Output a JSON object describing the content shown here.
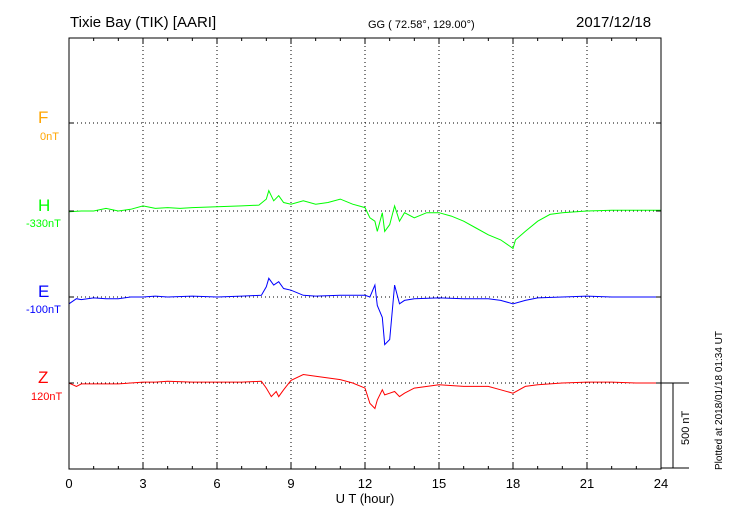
{
  "header": {
    "station": "Tixie Bay (TIK)  [AARI]",
    "coords": "GG ( 72.58°, 129.00°)",
    "date": "2017/12/18"
  },
  "plotted_note": "Plotted at 2018/01/18 01:34 UT",
  "scale_label": "500 nT",
  "chart_data": {
    "type": "line",
    "xlabel": "U T (hour)",
    "xlim": [
      0,
      24
    ],
    "xticks": [
      "0",
      "3",
      "6",
      "9",
      "12",
      "15",
      "18",
      "21",
      "24"
    ],
    "grid": true,
    "scale_bar_nT": 500,
    "series": [
      {
        "name": "F",
        "baseline": "0nT",
        "color": "#ffa500",
        "points": []
      },
      {
        "name": "H",
        "baseline": "-330nT",
        "color": "#00ff00",
        "points": [
          [
            0,
            -5
          ],
          [
            0.5,
            0
          ],
          [
            1,
            0
          ],
          [
            1.5,
            15
          ],
          [
            2,
            0
          ],
          [
            2.5,
            10
          ],
          [
            3,
            30
          ],
          [
            3.5,
            15
          ],
          [
            4,
            20
          ],
          [
            4.5,
            15
          ],
          [
            5,
            20
          ],
          [
            6,
            25
          ],
          [
            7,
            30
          ],
          [
            7.7,
            35
          ],
          [
            8,
            70
          ],
          [
            8.1,
            120
          ],
          [
            8.3,
            60
          ],
          [
            8.5,
            90
          ],
          [
            8.7,
            50
          ],
          [
            9,
            40
          ],
          [
            9.5,
            60
          ],
          [
            10,
            40
          ],
          [
            10.5,
            50
          ],
          [
            11,
            70
          ],
          [
            11.5,
            40
          ],
          [
            12,
            20
          ],
          [
            12.2,
            -40
          ],
          [
            12.4,
            -60
          ],
          [
            12.5,
            -120
          ],
          [
            12.7,
            -10
          ],
          [
            12.8,
            -120
          ],
          [
            13,
            -80
          ],
          [
            13.2,
            30
          ],
          [
            13.4,
            -60
          ],
          [
            13.6,
            -10
          ],
          [
            14,
            -40
          ],
          [
            14.5,
            -10
          ],
          [
            15,
            -10
          ],
          [
            15.5,
            -30
          ],
          [
            16,
            -60
          ],
          [
            16.5,
            -100
          ],
          [
            17,
            -140
          ],
          [
            17.5,
            -170
          ],
          [
            18,
            -220
          ],
          [
            18.1,
            -170
          ],
          [
            18.5,
            -120
          ],
          [
            19,
            -60
          ],
          [
            19.5,
            -20
          ],
          [
            20,
            -10
          ],
          [
            21,
            0
          ],
          [
            22,
            5
          ],
          [
            23,
            5
          ],
          [
            24,
            5
          ]
        ]
      },
      {
        "name": "E",
        "baseline": "-100nT",
        "color": "#0000ff",
        "points": [
          [
            0,
            -40
          ],
          [
            0.3,
            -10
          ],
          [
            0.5,
            -15
          ],
          [
            1,
            -5
          ],
          [
            1.5,
            -10
          ],
          [
            2,
            -10
          ],
          [
            2.5,
            0
          ],
          [
            3,
            0
          ],
          [
            3.5,
            5
          ],
          [
            4,
            0
          ],
          [
            5,
            5
          ],
          [
            6,
            0
          ],
          [
            7,
            5
          ],
          [
            7.8,
            10
          ],
          [
            8,
            60
          ],
          [
            8.1,
            110
          ],
          [
            8.3,
            70
          ],
          [
            8.5,
            90
          ],
          [
            8.7,
            50
          ],
          [
            9,
            40
          ],
          [
            9.5,
            10
          ],
          [
            10,
            5
          ],
          [
            11,
            10
          ],
          [
            11.5,
            10
          ],
          [
            12,
            10
          ],
          [
            12.2,
            0
          ],
          [
            12.4,
            70
          ],
          [
            12.5,
            -50
          ],
          [
            12.7,
            -120
          ],
          [
            12.8,
            -280
          ],
          [
            13,
            -250
          ],
          [
            13.2,
            70
          ],
          [
            13.4,
            -40
          ],
          [
            13.6,
            -20
          ],
          [
            14,
            -10
          ],
          [
            15,
            -5
          ],
          [
            16,
            -10
          ],
          [
            17,
            -10
          ],
          [
            17.5,
            -20
          ],
          [
            18,
            -40
          ],
          [
            18.5,
            -20
          ],
          [
            19,
            -5
          ],
          [
            20,
            0
          ],
          [
            21,
            5
          ],
          [
            22,
            0
          ],
          [
            23,
            0
          ],
          [
            24,
            0
          ]
        ]
      },
      {
        "name": "Z",
        "baseline": "120nT",
        "color": "#ff0000",
        "points": [
          [
            0,
            0
          ],
          [
            0.3,
            -20
          ],
          [
            0.5,
            -5
          ],
          [
            1,
            -5
          ],
          [
            1.5,
            -5
          ],
          [
            2,
            -5
          ],
          [
            2.5,
            0
          ],
          [
            3,
            5
          ],
          [
            3.5,
            5
          ],
          [
            4,
            10
          ],
          [
            5,
            5
          ],
          [
            6,
            5
          ],
          [
            7,
            5
          ],
          [
            7.8,
            10
          ],
          [
            8,
            -30
          ],
          [
            8.2,
            -80
          ],
          [
            8.4,
            -50
          ],
          [
            8.5,
            -80
          ],
          [
            8.7,
            -40
          ],
          [
            9,
            15
          ],
          [
            9.5,
            50
          ],
          [
            10,
            40
          ],
          [
            11,
            20
          ],
          [
            11.5,
            0
          ],
          [
            12,
            -30
          ],
          [
            12.2,
            -120
          ],
          [
            12.4,
            -150
          ],
          [
            12.5,
            -100
          ],
          [
            12.7,
            -40
          ],
          [
            12.8,
            -70
          ],
          [
            13,
            -60
          ],
          [
            13.2,
            -50
          ],
          [
            13.4,
            -80
          ],
          [
            13.6,
            -60
          ],
          [
            14,
            -30
          ],
          [
            15,
            -10
          ],
          [
            16,
            -20
          ],
          [
            17,
            -20
          ],
          [
            17.5,
            -40
          ],
          [
            18,
            -60
          ],
          [
            18.5,
            -20
          ],
          [
            19,
            -10
          ],
          [
            20,
            0
          ],
          [
            21,
            5
          ],
          [
            22,
            5
          ],
          [
            23,
            0
          ],
          [
            24,
            0
          ]
        ]
      }
    ]
  }
}
